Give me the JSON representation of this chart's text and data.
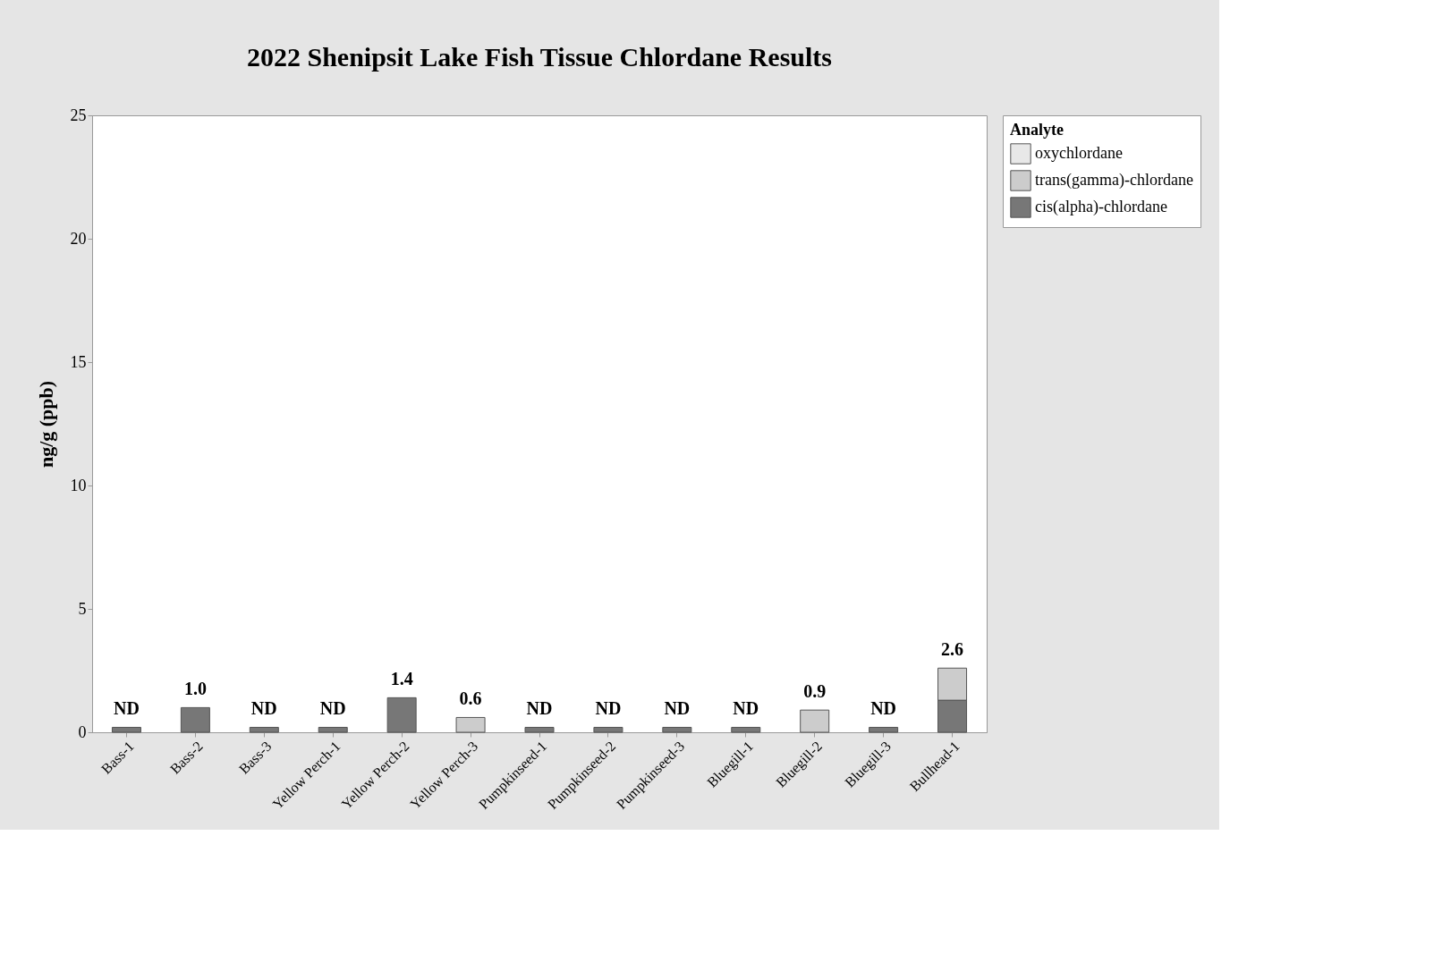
{
  "chart_data": {
    "type": "bar",
    "title": "2022 Shenipsit Lake Fish Tissue Chlordane Results",
    "ylabel": "ng/g (ppb)",
    "legend_title": "Analyte",
    "categories": [
      "Bass-1",
      "Bass-2",
      "Bass-3",
      "Yellow Perch-1",
      "Yellow Perch-2",
      "Yellow Perch-3",
      "Pumpkinseed-1",
      "Pumpkinseed-2",
      "Pumpkinseed-3",
      "Bluegill-1",
      "Bluegill-2",
      "Bluegill-3",
      "Bullhead-1"
    ],
    "stacked": true,
    "series": [
      {
        "name": "cis(alpha)-chlordane",
        "color": "#777777",
        "values": [
          0.2,
          1.0,
          0.2,
          0.2,
          1.4,
          null,
          0.2,
          0.2,
          0.2,
          0.2,
          null,
          0.2,
          1.3
        ]
      },
      {
        "name": "trans(gamma)-chlordane",
        "color": "#cccccc",
        "values": [
          null,
          null,
          null,
          null,
          null,
          0.6,
          null,
          null,
          null,
          null,
          0.9,
          null,
          1.3
        ]
      },
      {
        "name": "oxychlordane",
        "color": "#e8e8e8",
        "values": [
          null,
          null,
          null,
          null,
          null,
          null,
          null,
          null,
          null,
          null,
          null,
          null,
          null
        ]
      }
    ],
    "totals": [
      "ND",
      "1.0",
      "ND",
      "ND",
      "1.4",
      "0.6",
      "ND",
      "ND",
      "ND",
      "ND",
      "0.9",
      "ND",
      "2.6"
    ],
    "ylim": [
      0,
      25
    ],
    "yticks": [
      0,
      5,
      10,
      15,
      20,
      25
    ],
    "grid": false,
    "legend": "top right"
  }
}
